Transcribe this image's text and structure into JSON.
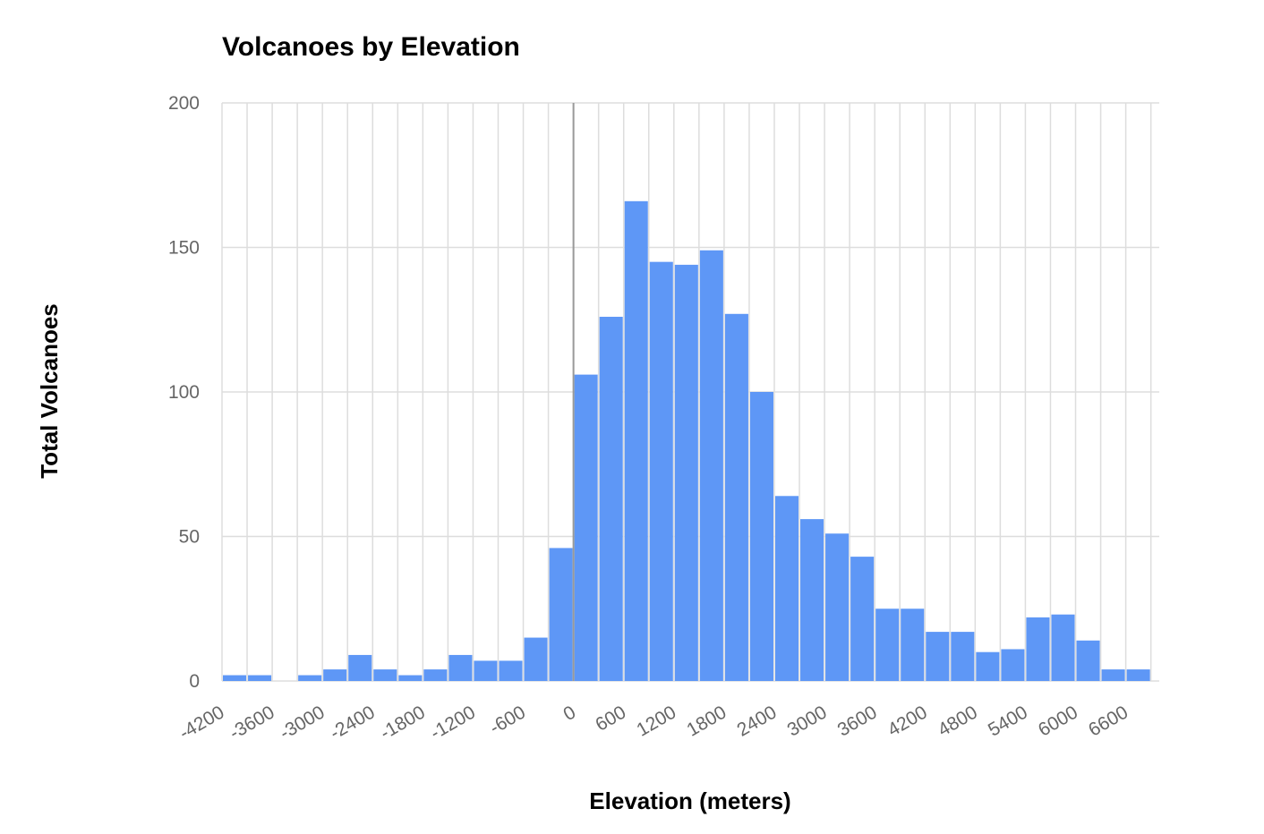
{
  "chart_data": {
    "type": "bar",
    "title": "Volcanoes by Elevation",
    "xlabel": "Elevation (meters)",
    "ylabel": "Total Volcanoes",
    "bin_width": 300,
    "xlim": [
      -4200,
      7000
    ],
    "ylim": [
      0,
      200
    ],
    "x_ticks": [
      -4200,
      -3600,
      -3000,
      -2400,
      -1800,
      -1200,
      -600,
      0,
      600,
      1200,
      1800,
      2400,
      3000,
      3600,
      4200,
      4800,
      5400,
      6000,
      6600
    ],
    "y_ticks": [
      0,
      50,
      100,
      150,
      200
    ],
    "grid": true,
    "bar_color": "#5e97f6",
    "bins": [
      {
        "start": -4200,
        "count": 2
      },
      {
        "start": -3900,
        "count": 2
      },
      {
        "start": -3600,
        "count": 0
      },
      {
        "start": -3300,
        "count": 2
      },
      {
        "start": -3000,
        "count": 4
      },
      {
        "start": -2700,
        "count": 9
      },
      {
        "start": -2400,
        "count": 4
      },
      {
        "start": -2100,
        "count": 2
      },
      {
        "start": -1800,
        "count": 4
      },
      {
        "start": -1500,
        "count": 9
      },
      {
        "start": -1200,
        "count": 7
      },
      {
        "start": -900,
        "count": 7
      },
      {
        "start": -600,
        "count": 15
      },
      {
        "start": -300,
        "count": 46
      },
      {
        "start": 0,
        "count": 106
      },
      {
        "start": 300,
        "count": 126
      },
      {
        "start": 600,
        "count": 166
      },
      {
        "start": 900,
        "count": 145
      },
      {
        "start": 1200,
        "count": 144
      },
      {
        "start": 1500,
        "count": 149
      },
      {
        "start": 1800,
        "count": 127
      },
      {
        "start": 2100,
        "count": 100
      },
      {
        "start": 2400,
        "count": 64
      },
      {
        "start": 2700,
        "count": 56
      },
      {
        "start": 3000,
        "count": 51
      },
      {
        "start": 3300,
        "count": 43
      },
      {
        "start": 3600,
        "count": 25
      },
      {
        "start": 3900,
        "count": 25
      },
      {
        "start": 4200,
        "count": 17
      },
      {
        "start": 4500,
        "count": 17
      },
      {
        "start": 4800,
        "count": 10
      },
      {
        "start": 5100,
        "count": 11
      },
      {
        "start": 5400,
        "count": 22
      },
      {
        "start": 5700,
        "count": 23
      },
      {
        "start": 6000,
        "count": 14
      },
      {
        "start": 6300,
        "count": 4
      },
      {
        "start": 6600,
        "count": 4
      }
    ]
  }
}
